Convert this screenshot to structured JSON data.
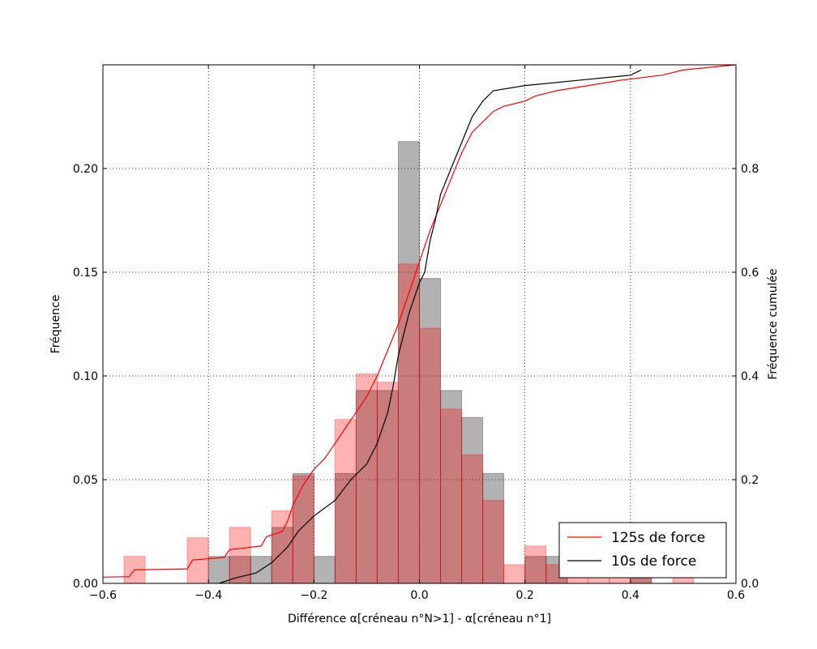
{
  "chart_data": {
    "type": "histogram",
    "xlabel": "Différence α[créneau n°N>1] - α[créneau n°1]",
    "ylabel_left": "Fréquence",
    "ylabel_right": "Fréquence cumulée",
    "xlim": [
      -0.6,
      0.6
    ],
    "ylim_left": [
      0,
      0.25
    ],
    "ylim_right": [
      0,
      1.0
    ],
    "x_ticks": [
      -0.6,
      -0.4,
      -0.2,
      0.0,
      0.2,
      0.4,
      0.6
    ],
    "x_tick_labels": [
      "−0.6",
      "−0.4",
      "−0.2",
      "0.0",
      "0.2",
      "0.4",
      "0.6"
    ],
    "y_left_ticks": [
      0.0,
      0.05,
      0.1,
      0.15,
      0.2
    ],
    "y_left_tick_labels": [
      "0.00",
      "0.05",
      "0.10",
      "0.15",
      "0.20"
    ],
    "y_right_ticks": [
      0.0,
      0.2,
      0.4,
      0.6,
      0.8
    ],
    "y_right_tick_labels": [
      "0.0",
      "0.2",
      "0.4",
      "0.6",
      "0.8"
    ],
    "grid": true,
    "legend_position": "bottom-right",
    "bin_width": 0.04,
    "histograms": [
      {
        "name": "125s de force",
        "color": "#ff0000",
        "bins_left": [
          -0.56,
          -0.44,
          -0.36,
          -0.28,
          -0.24,
          -0.16,
          -0.12,
          -0.08,
          -0.04,
          0.0,
          0.04,
          0.08,
          0.12,
          0.16,
          0.2,
          0.24,
          0.28,
          0.32,
          0.36,
          0.4,
          0.48
        ],
        "values": [
          0.013,
          0.022,
          0.027,
          0.035,
          0.052,
          0.079,
          0.101,
          0.097,
          0.154,
          0.123,
          0.084,
          0.062,
          0.04,
          0.009,
          0.018,
          0.009,
          0.009,
          0.009,
          0.009,
          0.004,
          0.009
        ]
      },
      {
        "name": "10s de force",
        "color": "#000000",
        "bins_left": [
          -0.4,
          -0.36,
          -0.32,
          -0.28,
          -0.24,
          -0.2,
          -0.16,
          -0.12,
          -0.08,
          -0.04,
          0.0,
          0.04,
          0.08,
          0.12,
          0.2,
          0.24,
          0.4
        ],
        "values": [
          0.013,
          0.013,
          0.013,
          0.027,
          0.053,
          0.013,
          0.053,
          0.093,
          0.093,
          0.213,
          0.147,
          0.093,
          0.08,
          0.053,
          0.013,
          0.013,
          0.013
        ]
      }
    ],
    "cumulative_series": [
      {
        "name": "125s de force",
        "color": "#ff0000",
        "points": [
          [
            -0.6,
            0.012
          ],
          [
            -0.55,
            0.013
          ],
          [
            -0.54,
            0.026
          ],
          [
            -0.44,
            0.028
          ],
          [
            -0.43,
            0.045
          ],
          [
            -0.37,
            0.05
          ],
          [
            -0.36,
            0.065
          ],
          [
            -0.3,
            0.072
          ],
          [
            -0.29,
            0.09
          ],
          [
            -0.26,
            0.1
          ],
          [
            -0.25,
            0.12
          ],
          [
            -0.24,
            0.15
          ],
          [
            -0.22,
            0.19
          ],
          [
            -0.2,
            0.22
          ],
          [
            -0.18,
            0.24
          ],
          [
            -0.16,
            0.27
          ],
          [
            -0.14,
            0.3
          ],
          [
            -0.12,
            0.33
          ],
          [
            -0.1,
            0.36
          ],
          [
            -0.08,
            0.4
          ],
          [
            -0.06,
            0.45
          ],
          [
            -0.04,
            0.5
          ],
          [
            -0.02,
            0.56
          ],
          [
            0.0,
            0.62
          ],
          [
            0.02,
            0.68
          ],
          [
            0.04,
            0.73
          ],
          [
            0.06,
            0.78
          ],
          [
            0.08,
            0.83
          ],
          [
            0.1,
            0.87
          ],
          [
            0.12,
            0.89
          ],
          [
            0.14,
            0.91
          ],
          [
            0.16,
            0.92
          ],
          [
            0.2,
            0.93
          ],
          [
            0.22,
            0.94
          ],
          [
            0.26,
            0.95
          ],
          [
            0.32,
            0.96
          ],
          [
            0.38,
            0.97
          ],
          [
            0.46,
            0.98
          ],
          [
            0.5,
            0.99
          ],
          [
            0.6,
            1.0
          ]
        ]
      },
      {
        "name": "10s de force",
        "color": "#000000",
        "points": [
          [
            -0.38,
            0.0
          ],
          [
            -0.35,
            0.01
          ],
          [
            -0.31,
            0.02
          ],
          [
            -0.28,
            0.04
          ],
          [
            -0.25,
            0.07
          ],
          [
            -0.23,
            0.1
          ],
          [
            -0.22,
            0.11
          ],
          [
            -0.2,
            0.13
          ],
          [
            -0.16,
            0.16
          ],
          [
            -0.13,
            0.2
          ],
          [
            -0.1,
            0.23
          ],
          [
            -0.08,
            0.27
          ],
          [
            -0.06,
            0.33
          ],
          [
            -0.05,
            0.38
          ],
          [
            -0.04,
            0.44
          ],
          [
            -0.03,
            0.48
          ],
          [
            -0.02,
            0.52
          ],
          [
            -0.01,
            0.55
          ],
          [
            0.0,
            0.58
          ],
          [
            0.01,
            0.6
          ],
          [
            0.02,
            0.66
          ],
          [
            0.03,
            0.7
          ],
          [
            0.04,
            0.75
          ],
          [
            0.06,
            0.8
          ],
          [
            0.08,
            0.85
          ],
          [
            0.1,
            0.9
          ],
          [
            0.12,
            0.93
          ],
          [
            0.14,
            0.95
          ],
          [
            0.2,
            0.96
          ],
          [
            0.3,
            0.97
          ],
          [
            0.4,
            0.98
          ],
          [
            0.42,
            0.99
          ]
        ]
      }
    ],
    "legend": [
      {
        "label": "125s de force",
        "color": "#ff0000"
      },
      {
        "label": "10s de force",
        "color": "#000000"
      }
    ]
  }
}
